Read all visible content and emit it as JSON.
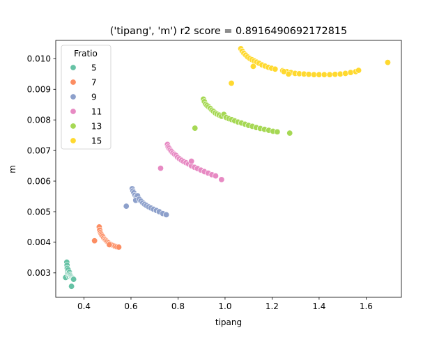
{
  "chart_data": {
    "type": "scatter",
    "title": "('tipang', 'm') r2 score = 0.8916490692172815",
    "xlabel": "tipang",
    "ylabel": "m",
    "xlim": [
      0.28,
      1.75
    ],
    "ylim": [
      0.0022,
      0.0106
    ],
    "xticks": [
      0.4,
      0.6,
      0.8,
      1.0,
      1.2,
      1.4,
      1.6
    ],
    "xtick_labels": [
      "0.4",
      "0.6",
      "0.8",
      "1.0",
      "1.2",
      "1.4",
      "1.6"
    ],
    "yticks": [
      0.003,
      0.004,
      0.005,
      0.006,
      0.007,
      0.008,
      0.009,
      0.01
    ],
    "ytick_labels": [
      "0.003",
      "0.004",
      "0.005",
      "0.006",
      "0.007",
      "0.008",
      "0.009",
      "0.010"
    ],
    "grid": false,
    "legend": {
      "title": "Fratio",
      "placement": "top-left"
    },
    "series": [
      {
        "name": "5",
        "color": "#66c2a5",
        "points": [
          [
            0.322,
            0.00285
          ],
          [
            0.327,
            0.00335
          ],
          [
            0.328,
            0.00325
          ],
          [
            0.329,
            0.00315
          ],
          [
            0.33,
            0.00305
          ],
          [
            0.331,
            0.00298
          ],
          [
            0.333,
            0.0031
          ],
          [
            0.334,
            0.00292
          ],
          [
            0.335,
            0.003
          ],
          [
            0.337,
            0.00288
          ],
          [
            0.338,
            0.00302
          ],
          [
            0.34,
            0.00295
          ],
          [
            0.342,
            0.00292
          ],
          [
            0.344,
            0.00289
          ],
          [
            0.346,
            0.00287
          ],
          [
            0.348,
            0.00285
          ],
          [
            0.35,
            0.00283
          ],
          [
            0.352,
            0.00281
          ],
          [
            0.354,
            0.0028
          ],
          [
            0.356,
            0.00279
          ],
          [
            0.347,
            0.00256
          ]
        ]
      },
      {
        "name": "7",
        "color": "#fc8d62",
        "points": [
          [
            0.445,
            0.00405
          ],
          [
            0.465,
            0.0045
          ],
          [
            0.467,
            0.0044
          ],
          [
            0.47,
            0.00432
          ],
          [
            0.473,
            0.00427
          ],
          [
            0.476,
            0.00423
          ],
          [
            0.48,
            0.00419
          ],
          [
            0.484,
            0.00414
          ],
          [
            0.488,
            0.0041
          ],
          [
            0.492,
            0.00407
          ],
          [
            0.496,
            0.00404
          ],
          [
            0.5,
            0.00401
          ],
          [
            0.505,
            0.00398
          ],
          [
            0.51,
            0.00395
          ],
          [
            0.515,
            0.00393
          ],
          [
            0.52,
            0.00391
          ],
          [
            0.526,
            0.00389
          ],
          [
            0.532,
            0.00387
          ],
          [
            0.54,
            0.00385
          ],
          [
            0.548,
            0.00384
          ],
          [
            0.508,
            0.00392
          ]
        ]
      },
      {
        "name": "9",
        "color": "#8da0cb",
        "points": [
          [
            0.58,
            0.00518
          ],
          [
            0.605,
            0.00575
          ],
          [
            0.608,
            0.00568
          ],
          [
            0.612,
            0.00562
          ],
          [
            0.617,
            0.00554
          ],
          [
            0.622,
            0.00548
          ],
          [
            0.628,
            0.00552
          ],
          [
            0.62,
            0.00537
          ],
          [
            0.635,
            0.00541
          ],
          [
            0.642,
            0.00535
          ],
          [
            0.65,
            0.00529
          ],
          [
            0.658,
            0.00524
          ],
          [
            0.666,
            0.0052
          ],
          [
            0.675,
            0.00516
          ],
          [
            0.685,
            0.00512
          ],
          [
            0.696,
            0.00508
          ],
          [
            0.708,
            0.00504
          ],
          [
            0.72,
            0.005
          ],
          [
            0.735,
            0.00494
          ],
          [
            0.75,
            0.0049
          ]
        ]
      },
      {
        "name": "11",
        "color": "#e78ac3",
        "points": [
          [
            0.726,
            0.00642
          ],
          [
            0.755,
            0.0072
          ],
          [
            0.758,
            0.00712
          ],
          [
            0.762,
            0.00707
          ],
          [
            0.767,
            0.00702
          ],
          [
            0.772,
            0.00697
          ],
          [
            0.778,
            0.00692
          ],
          [
            0.785,
            0.00688
          ],
          [
            0.791,
            0.00684
          ],
          [
            0.798,
            0.00678
          ],
          [
            0.806,
            0.00673
          ],
          [
            0.815,
            0.00668
          ],
          [
            0.824,
            0.00664
          ],
          [
            0.834,
            0.0066
          ],
          [
            0.845,
            0.00656
          ],
          [
            0.857,
            0.0065
          ],
          [
            0.87,
            0.00645
          ],
          [
            0.883,
            0.00641
          ],
          [
            0.897,
            0.00636
          ],
          [
            0.912,
            0.00631
          ],
          [
            0.928,
            0.00626
          ],
          [
            0.944,
            0.00621
          ],
          [
            0.96,
            0.00617
          ],
          [
            0.985,
            0.00605
          ],
          [
            0.857,
            0.00665
          ]
        ]
      },
      {
        "name": "13",
        "color": "#a6d854",
        "points": [
          [
            0.872,
            0.00773
          ],
          [
            0.908,
            0.00868
          ],
          [
            0.912,
            0.0086
          ],
          [
            0.917,
            0.00852
          ],
          [
            0.923,
            0.00847
          ],
          [
            0.93,
            0.00843
          ],
          [
            0.937,
            0.00838
          ],
          [
            0.944,
            0.00832
          ],
          [
            0.951,
            0.00828
          ],
          [
            0.958,
            0.00823
          ],
          [
            0.966,
            0.00819
          ],
          [
            0.975,
            0.00816
          ],
          [
            0.985,
            0.00812
          ],
          [
            0.995,
            0.00818
          ],
          [
            1.005,
            0.00808
          ],
          [
            1.016,
            0.00804
          ],
          [
            1.028,
            0.00801
          ],
          [
            1.041,
            0.00797
          ],
          [
            1.055,
            0.00793
          ],
          [
            1.07,
            0.0079
          ],
          [
            1.085,
            0.00786
          ],
          [
            1.1,
            0.00782
          ],
          [
            1.116,
            0.00779
          ],
          [
            1.133,
            0.00775
          ],
          [
            1.15,
            0.00772
          ],
          [
            1.168,
            0.00769
          ],
          [
            1.186,
            0.00766
          ],
          [
            1.204,
            0.00763
          ],
          [
            1.222,
            0.00761
          ],
          [
            1.275,
            0.00757
          ]
        ]
      },
      {
        "name": "15",
        "color": "#ffd92f",
        "points": [
          [
            1.027,
            0.0092
          ],
          [
            1.067,
            0.01033
          ],
          [
            1.073,
            0.01025
          ],
          [
            1.08,
            0.01018
          ],
          [
            1.088,
            0.01012
          ],
          [
            1.096,
            0.01006
          ],
          [
            1.105,
            0.01001
          ],
          [
            1.114,
            0.00997
          ],
          [
            1.124,
            0.00993
          ],
          [
            1.134,
            0.00989
          ],
          [
            1.145,
            0.00985
          ],
          [
            1.157,
            0.0098
          ],
          [
            1.17,
            0.00976
          ],
          [
            1.184,
            0.00972
          ],
          [
            1.198,
            0.00969
          ],
          [
            1.213,
            0.00966
          ],
          [
            1.12,
            0.00975
          ],
          [
            1.245,
            0.00961
          ],
          [
            1.262,
            0.00958
          ],
          [
            1.28,
            0.00955
          ],
          [
            1.298,
            0.00952
          ],
          [
            1.316,
            0.00951
          ],
          [
            1.336,
            0.0095
          ],
          [
            1.356,
            0.00949
          ],
          [
            1.378,
            0.00948
          ],
          [
            1.4,
            0.00948
          ],
          [
            1.422,
            0.00948
          ],
          [
            1.445,
            0.00948
          ],
          [
            1.468,
            0.00949
          ],
          [
            1.49,
            0.0095
          ],
          [
            1.512,
            0.00952
          ],
          [
            1.534,
            0.00955
          ],
          [
            1.556,
            0.00958
          ],
          [
            1.568,
            0.00962
          ],
          [
            1.692,
            0.00988
          ],
          [
            1.27,
            0.0095
          ],
          [
            1.25,
            0.00958
          ]
        ]
      }
    ]
  }
}
